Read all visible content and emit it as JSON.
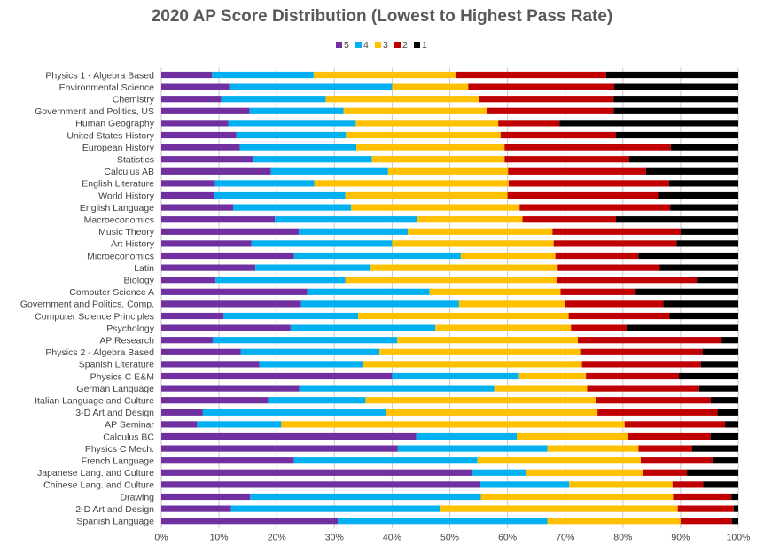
{
  "chart_data": {
    "type": "bar",
    "orientation": "horizontal",
    "stacked": true,
    "title": "2020 AP Score Distribution (Lowest to Highest Pass Rate)",
    "xlabel": "",
    "ylabel": "",
    "xlim": [
      0,
      100
    ],
    "x_ticks": [
      "0%",
      "10%",
      "20%",
      "30%",
      "40%",
      "50%",
      "60%",
      "70%",
      "80%",
      "90%",
      "100%"
    ],
    "grid": "vertical",
    "legend_position": "top",
    "categories": [
      "Physics 1 - Algebra Based",
      "Environmental Science",
      "Chemistry",
      "Government and Politics, US",
      "Human Geography",
      "United States History",
      "European History",
      "Statistics",
      "Calculus AB",
      "English Literature",
      "World History",
      "English Language",
      "Macroeconomics",
      "Music Theory",
      "Art History",
      "Microeconomics",
      "Latin",
      "Biology",
      "Computer Science A",
      "Government and Politics, Comp.",
      "Computer Science Principles",
      "Psychology",
      "AP Research",
      "Physics 2 - Algebra Based",
      "Spanish Literature",
      "Physics C E&M",
      "German Language",
      "Italian Language and Culture",
      "3-D Art and Design",
      "AP Seminar",
      "Calculus BC",
      "Physics C Mech.",
      "French Language",
      "Japanese Lang. and Culture",
      "Chinese Lang. and Culture",
      "Drawing",
      "2-D Art and Design",
      "Spanish Language"
    ],
    "series": [
      {
        "name": "5",
        "color": "#7030a0",
        "values": [
          8.8,
          11.8,
          10.4,
          15.3,
          11.6,
          13.0,
          13.6,
          16.0,
          19.0,
          9.3,
          9.2,
          12.5,
          19.7,
          23.8,
          15.6,
          23.0,
          16.3,
          9.4,
          25.3,
          24.2,
          10.8,
          22.4,
          8.9,
          13.8,
          17.0,
          40.0,
          23.9,
          18.5,
          7.2,
          6.2,
          44.2,
          41.0,
          23.0,
          53.8,
          55.3,
          15.4,
          12.1,
          30.6
        ]
      },
      {
        "name": "4",
        "color": "#00b0f0",
        "values": [
          17.6,
          28.2,
          18.1,
          16.3,
          22.1,
          19.0,
          20.2,
          20.5,
          20.3,
          17.2,
          22.7,
          20.4,
          24.6,
          18.9,
          24.4,
          28.9,
          20.0,
          22.5,
          21.2,
          27.4,
          23.3,
          25.1,
          32.0,
          24.0,
          18.0,
          22.0,
          33.8,
          16.9,
          31.8,
          14.6,
          17.4,
          25.9,
          31.8,
          9.5,
          15.4,
          40.0,
          36.2,
          36.3
        ]
      },
      {
        "name": "3",
        "color": "#ffc000",
        "values": [
          24.6,
          13.2,
          26.6,
          24.9,
          24.7,
          26.8,
          25.7,
          23.0,
          20.8,
          33.7,
          28.1,
          29.2,
          18.3,
          25.1,
          28.0,
          16.4,
          32.4,
          36.6,
          22.7,
          18.4,
          36.5,
          23.5,
          31.3,
          34.8,
          37.9,
          11.6,
          16.1,
          40.0,
          36.6,
          59.5,
          19.2,
          15.8,
          28.3,
          20.2,
          17.9,
          33.3,
          41.2,
          23.1
        ]
      },
      {
        "name": "2",
        "color": "#c00000",
        "values": [
          26.1,
          25.3,
          23.3,
          21.9,
          10.6,
          20.0,
          28.8,
          21.6,
          23.9,
          27.8,
          26.1,
          26.1,
          16.2,
          22.2,
          21.3,
          14.4,
          17.7,
          24.3,
          13.0,
          17.0,
          17.5,
          9.6,
          24.9,
          21.2,
          20.6,
          16.1,
          19.4,
          19.8,
          20.8,
          17.4,
          14.4,
          9.3,
          12.4,
          7.6,
          5.3,
          10.1,
          9.7,
          8.9
        ]
      },
      {
        "name": "1",
        "color": "#000000",
        "values": [
          22.9,
          21.5,
          21.6,
          21.6,
          31.0,
          21.2,
          11.7,
          18.9,
          16.0,
          12.0,
          13.9,
          11.8,
          21.2,
          10.0,
          10.7,
          17.3,
          13.6,
          7.2,
          17.8,
          13.0,
          11.9,
          19.4,
          2.9,
          6.2,
          6.5,
          10.3,
          6.8,
          4.8,
          3.6,
          2.3,
          4.8,
          8.0,
          4.5,
          8.9,
          6.1,
          1.2,
          0.8,
          1.1
        ]
      }
    ]
  }
}
